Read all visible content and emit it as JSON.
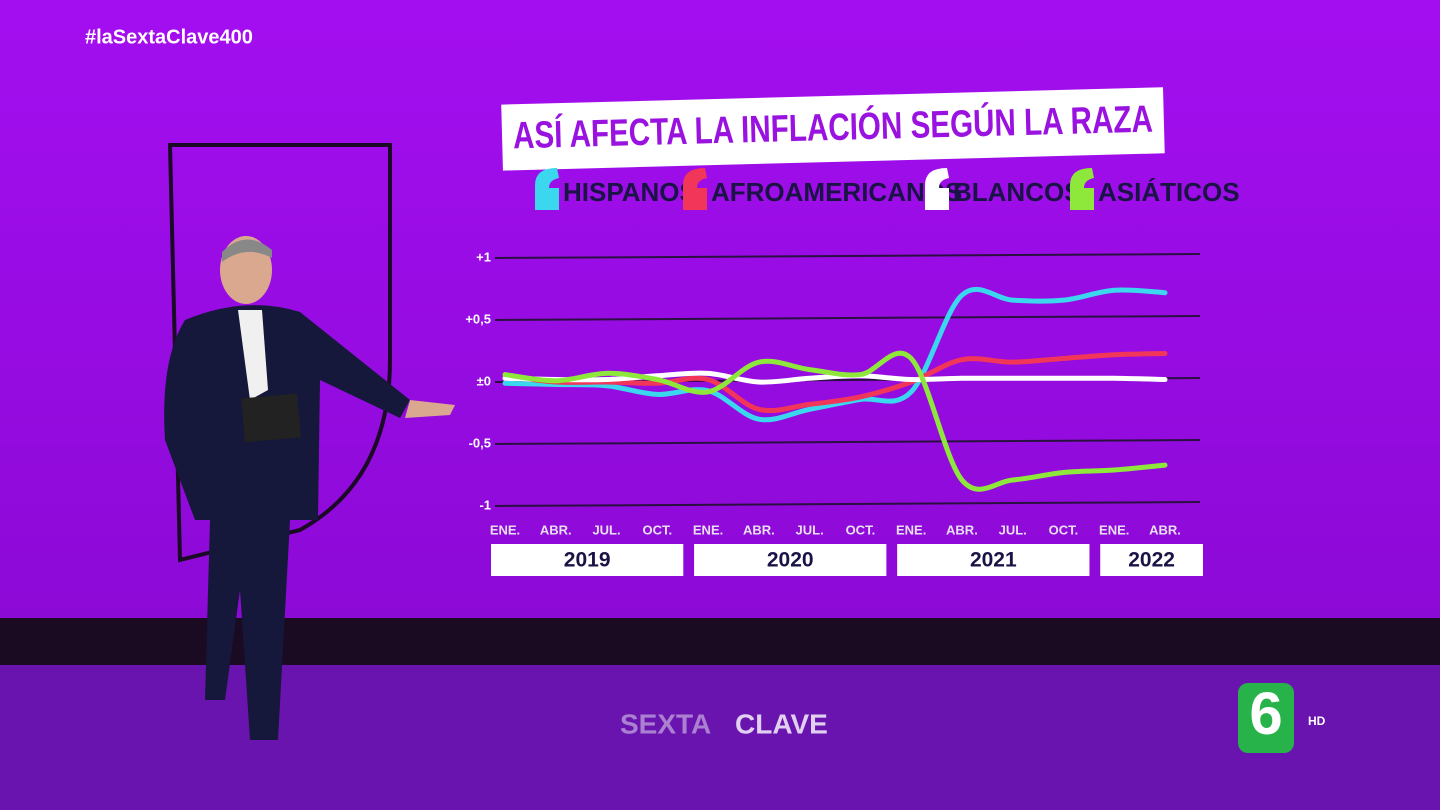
{
  "hashtag": "#laSextaClave400",
  "branding": {
    "channel_logo": "6",
    "hd": "HD",
    "reflection_left": "SEXTA",
    "reflection_right": "CLAVE"
  },
  "chart_data": {
    "type": "line",
    "title": "ASÍ AFECTA LA INFLACIÓN SEGÚN LA RAZA",
    "categories": [
      "ENE.",
      "ABR.",
      "JUL.",
      "OCT.",
      "ENE.",
      "ABR.",
      "JUL.",
      "OCT.",
      "ENE.",
      "ABR.",
      "JUL.",
      "OCT.",
      "ENE.",
      "ABR."
    ],
    "year_labels": [
      "2019",
      "2020",
      "2021",
      "2022"
    ],
    "series": [
      {
        "name": "HISPANOS",
        "color": "#3ad7ee",
        "values": [
          -0.01,
          -0.02,
          -0.03,
          -0.1,
          -0.07,
          -0.3,
          -0.22,
          -0.14,
          -0.08,
          0.7,
          0.66,
          0.66,
          0.74,
          0.72
        ]
      },
      {
        "name": "AFROAMERICANOS",
        "color": "#f2365a",
        "values": [
          0.05,
          0.0,
          0.0,
          -0.01,
          0.02,
          -0.22,
          -0.18,
          -0.12,
          0.0,
          0.18,
          0.16,
          0.19,
          0.22,
          0.23
        ]
      },
      {
        "name": "BLANCOS",
        "color": "#ffffff",
        "values": [
          0.03,
          0.02,
          0.02,
          0.05,
          0.07,
          0.0,
          0.03,
          0.05,
          0.02,
          0.03,
          0.03,
          0.03,
          0.03,
          0.02
        ]
      },
      {
        "name": "ASIÁTICOS",
        "color": "#8ee83c",
        "values": [
          0.06,
          0.01,
          0.07,
          0.02,
          -0.08,
          0.16,
          0.1,
          0.06,
          0.19,
          -0.79,
          -0.79,
          -0.73,
          -0.71,
          -0.67
        ]
      }
    ],
    "ylim": [
      -1,
      1
    ],
    "yticks": [
      {
        "value": 1,
        "label": "+1"
      },
      {
        "value": 0.5,
        "label": "+0,5"
      },
      {
        "value": 0,
        "label": "±0"
      },
      {
        "value": -0.5,
        "label": "-0,5"
      },
      {
        "value": -1,
        "label": "-1"
      }
    ],
    "grid": true
  }
}
